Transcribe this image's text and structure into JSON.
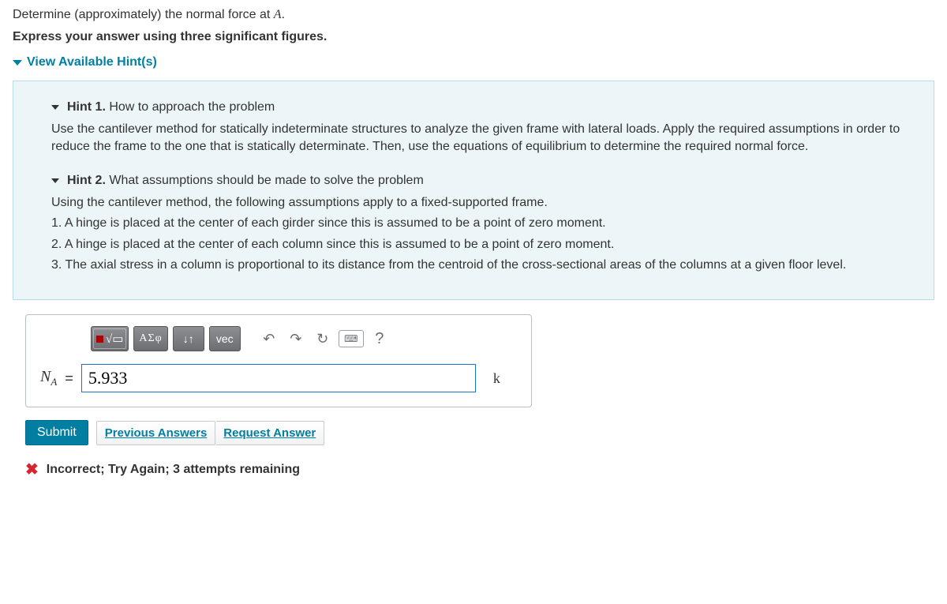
{
  "prompt": {
    "line1_pre": "Determine (approximately) the normal force at ",
    "line1_var": "A",
    "line1_post": ".",
    "line2": "Express your answer using three significant figures."
  },
  "hints": {
    "toggle_label": "View Available Hint(s)",
    "items": [
      {
        "label": "Hint 1.",
        "title": "How to approach the problem",
        "body": "Use the cantilever method for statically indeterminate structures to analyze the given frame with lateral loads. Apply the required assumptions in order to reduce the frame to the one that is statically determinate. Then, use the equations of equilibrium to determine the required normal force."
      },
      {
        "label": "Hint 2.",
        "title": "What assumptions should be made to solve the problem",
        "body_lines": [
          "Using the cantilever method, the following assumptions apply to a fixed-supported frame.",
          "1. A hinge is placed at the center of each girder since this is assumed to be a point of zero moment.",
          "2. A hinge is placed at the center of each column since this is assumed to be a point of zero moment.",
          "3. The axial stress in a column is proportional to its distance from the centroid of the cross-sectional areas of the columns at a given floor level."
        ]
      }
    ]
  },
  "toolbar": {
    "templates_label": "",
    "greek_label": "ΑΣφ",
    "arrows_label": "↓↑",
    "vec_label": "vec",
    "help_label": "?"
  },
  "answer": {
    "symbol": "N",
    "subscript": "A",
    "equals": "=",
    "value": "5.933",
    "unit": "k"
  },
  "actions": {
    "submit": "Submit",
    "previous": "Previous Answers",
    "request": "Request Answer"
  },
  "feedback": {
    "text": "Incorrect; Try Again; 3 attempts remaining"
  },
  "colors": {
    "link": "#007fa3",
    "panel_bg": "#ecf6f9",
    "error": "#d9232e"
  }
}
